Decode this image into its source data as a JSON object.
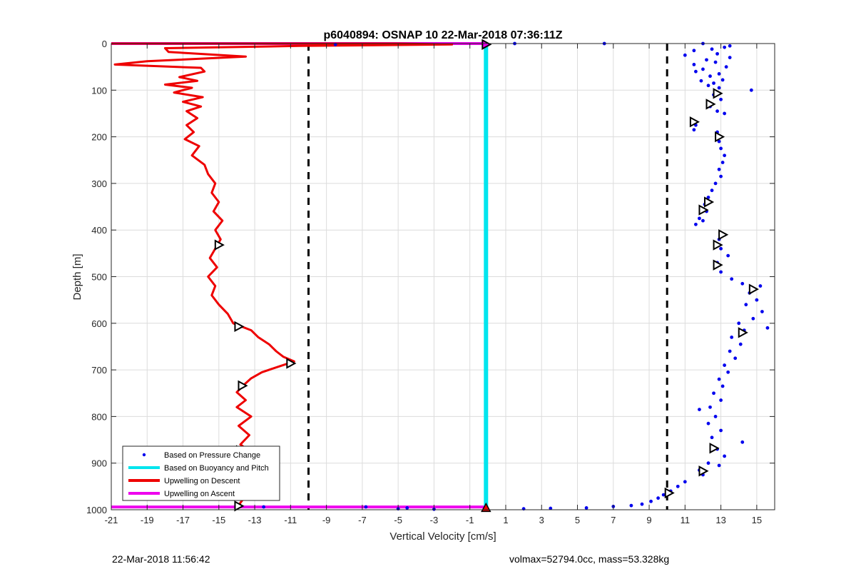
{
  "chart_data": {
    "type": "scatter",
    "title": "p6040894: OSNAP 10 22-Mar-2018 07:36:11Z",
    "xlabel": "Vertical Velocity [cm/s]",
    "ylabel": "Depth [m]",
    "xlim": [
      -21,
      16
    ],
    "ylim": [
      0,
      1000
    ],
    "y_reversed": true,
    "grid": true,
    "legend_placement": "bottom-left",
    "x_ticks": [
      -21,
      -19,
      -17,
      -15,
      -13,
      -11,
      -9,
      -7,
      -5,
      -3,
      -1,
      1,
      3,
      5,
      7,
      9,
      11,
      13,
      15
    ],
    "x_tick_labels": [
      "-21",
      "-19",
      "-17",
      "-15",
      "-13",
      "-11",
      "-9",
      "-7",
      "-5",
      "-3",
      "-1",
      "1",
      "3",
      "5",
      "7",
      "9",
      "11",
      "13",
      "15"
    ],
    "y_ticks": [
      0,
      100,
      200,
      300,
      400,
      500,
      600,
      700,
      800,
      900,
      1000
    ],
    "y_tick_labels": [
      "0",
      "100",
      "200",
      "300",
      "400",
      "500",
      "600",
      "700",
      "800",
      "900",
      "1000"
    ],
    "thresholds": [
      -10,
      10
    ],
    "series": [
      {
        "name": "Based on Pressure Change",
        "kind": "scatter",
        "color": "#0000ee",
        "points": [
          [
            12.0,
            0
          ],
          [
            13.5,
            5
          ],
          [
            6.5,
            0
          ],
          [
            1.5,
            0
          ],
          [
            -8.5,
            2
          ],
          [
            11.5,
            15
          ],
          [
            12.5,
            12
          ],
          [
            13.2,
            8
          ],
          [
            11.0,
            25
          ],
          [
            12.8,
            22
          ],
          [
            12.2,
            35
          ],
          [
            11.5,
            45
          ],
          [
            12.7,
            40
          ],
          [
            13.5,
            30
          ],
          [
            12.0,
            55
          ],
          [
            11.6,
            60
          ],
          [
            12.9,
            65
          ],
          [
            13.3,
            50
          ],
          [
            12.4,
            70
          ],
          [
            11.9,
            80
          ],
          [
            12.6,
            85
          ],
          [
            13.1,
            78
          ],
          [
            12.3,
            90
          ],
          [
            12.9,
            95
          ],
          [
            14.7,
            100
          ],
          [
            12.6,
            110
          ],
          [
            13.0,
            120
          ],
          [
            12.4,
            135
          ],
          [
            12.8,
            145
          ],
          [
            13.2,
            150
          ],
          [
            11.4,
            165
          ],
          [
            11.6,
            175
          ],
          [
            11.5,
            185
          ],
          [
            12.8,
            190
          ],
          [
            12.9,
            210
          ],
          [
            13.0,
            225
          ],
          [
            13.2,
            240
          ],
          [
            13.1,
            255
          ],
          [
            12.9,
            270
          ],
          [
            13.0,
            285
          ],
          [
            12.7,
            300
          ],
          [
            12.5,
            315
          ],
          [
            12.3,
            330
          ],
          [
            12.1,
            345
          ],
          [
            12.2,
            360
          ],
          [
            11.8,
            375
          ],
          [
            11.6,
            388
          ],
          [
            12.0,
            380
          ],
          [
            13.2,
            410
          ],
          [
            12.9,
            420
          ],
          [
            13.0,
            440
          ],
          [
            13.4,
            455
          ],
          [
            12.8,
            470
          ],
          [
            13.0,
            490
          ],
          [
            13.6,
            505
          ],
          [
            14.2,
            515
          ],
          [
            15.2,
            520
          ],
          [
            14.6,
            535
          ],
          [
            15.0,
            550
          ],
          [
            14.4,
            560
          ],
          [
            15.3,
            575
          ],
          [
            14.8,
            590
          ],
          [
            15.6,
            610
          ],
          [
            14.0,
            600
          ],
          [
            14.3,
            615
          ],
          [
            13.6,
            630
          ],
          [
            14.1,
            645
          ],
          [
            13.5,
            660
          ],
          [
            13.8,
            675
          ],
          [
            13.2,
            690
          ],
          [
            13.4,
            705
          ],
          [
            12.9,
            720
          ],
          [
            13.1,
            735
          ],
          [
            12.6,
            750
          ],
          [
            13.0,
            765
          ],
          [
            12.4,
            780
          ],
          [
            11.8,
            785
          ],
          [
            12.7,
            800
          ],
          [
            12.3,
            815
          ],
          [
            13.0,
            830
          ],
          [
            12.5,
            845
          ],
          [
            14.2,
            855
          ],
          [
            12.8,
            870
          ],
          [
            13.2,
            885
          ],
          [
            12.3,
            900
          ],
          [
            12.9,
            905
          ],
          [
            11.8,
            915
          ],
          [
            12.0,
            925
          ],
          [
            11.0,
            940
          ],
          [
            10.6,
            950
          ],
          [
            10.2,
            960
          ],
          [
            9.8,
            968
          ],
          [
            9.5,
            975
          ],
          [
            9.1,
            982
          ],
          [
            8.6,
            988
          ],
          [
            8.0,
            991
          ],
          [
            7.0,
            993
          ],
          [
            5.5,
            996
          ],
          [
            3.5,
            997
          ],
          [
            2.0,
            998
          ],
          [
            -4.5,
            996
          ],
          [
            -5.0,
            998
          ],
          [
            -3.0,
            999
          ],
          [
            -6.8,
            994
          ],
          [
            -14.0,
            993
          ],
          [
            -12.5,
            994
          ]
        ]
      },
      {
        "name": "Based on Buoyancy and Pitch",
        "kind": "line",
        "color": "#00e5ee",
        "points": [
          [
            -0.1,
            0
          ],
          [
            -0.1,
            1000
          ]
        ]
      },
      {
        "name": "Upwelling on Descent",
        "kind": "line",
        "color": "#ee0000",
        "points": [
          [
            -21.0,
            0
          ],
          [
            -5.0,
            0
          ],
          [
            -2.0,
            2
          ],
          [
            -10.5,
            5
          ],
          [
            -18.0,
            10
          ],
          [
            -17.8,
            18
          ],
          [
            -13.5,
            28
          ],
          [
            -19.0,
            38
          ],
          [
            -20.8,
            45
          ],
          [
            -16.0,
            52
          ],
          [
            -15.8,
            60
          ],
          [
            -17.2,
            72
          ],
          [
            -16.2,
            80
          ],
          [
            -18.0,
            88
          ],
          [
            -16.5,
            95
          ],
          [
            -17.5,
            105
          ],
          [
            -15.9,
            115
          ],
          [
            -17.0,
            125
          ],
          [
            -16.0,
            135
          ],
          [
            -16.8,
            145
          ],
          [
            -16.2,
            160
          ],
          [
            -16.8,
            175
          ],
          [
            -16.4,
            190
          ],
          [
            -16.9,
            205
          ],
          [
            -16.1,
            220
          ],
          [
            -16.5,
            240
          ],
          [
            -15.8,
            260
          ],
          [
            -15.6,
            280
          ],
          [
            -15.2,
            300
          ],
          [
            -15.4,
            320
          ],
          [
            -15.0,
            340
          ],
          [
            -15.3,
            360
          ],
          [
            -14.8,
            380
          ],
          [
            -15.2,
            400
          ],
          [
            -14.9,
            420
          ],
          [
            -15.2,
            440
          ],
          [
            -15.5,
            460
          ],
          [
            -15.1,
            480
          ],
          [
            -15.6,
            500
          ],
          [
            -15.2,
            520
          ],
          [
            -15.4,
            540
          ],
          [
            -15.0,
            560
          ],
          [
            -14.5,
            580
          ],
          [
            -14.2,
            600
          ],
          [
            -13.2,
            615
          ],
          [
            -12.8,
            630
          ],
          [
            -12.2,
            645
          ],
          [
            -11.8,
            660
          ],
          [
            -11.4,
            672
          ],
          [
            -10.8,
            682
          ],
          [
            -11.6,
            692
          ],
          [
            -12.6,
            705
          ],
          [
            -13.2,
            718
          ],
          [
            -13.6,
            732
          ],
          [
            -14.0,
            748
          ],
          [
            -13.5,
            765
          ],
          [
            -14.0,
            780
          ],
          [
            -13.2,
            800
          ],
          [
            -13.9,
            820
          ],
          [
            -13.3,
            840
          ],
          [
            -13.8,
            860
          ],
          [
            -13.1,
            880
          ],
          [
            -13.6,
            900
          ],
          [
            -13.0,
            920
          ],
          [
            -13.5,
            940
          ],
          [
            -13.2,
            960
          ],
          [
            -13.6,
            975
          ],
          [
            -13.8,
            985
          ],
          [
            -13.9,
            993
          ]
        ]
      },
      {
        "name": "Upwelling on Ascent",
        "kind": "line",
        "color": "#ee00ee",
        "points": [
          [
            -21.0,
            0
          ],
          [
            -0.1,
            0
          ],
          [
            -0.1,
            994
          ],
          [
            -21.0,
            994
          ]
        ]
      }
    ],
    "descent_markers": [
      [
        -15.0,
        432
      ],
      [
        -13.9,
        607
      ],
      [
        -11.0,
        686
      ],
      [
        -13.7,
        734
      ],
      [
        -13.8,
        873
      ],
      [
        -13.0,
        918
      ],
      [
        -13.9,
        992
      ]
    ],
    "ascent_markers": [
      [
        12.8,
        107
      ],
      [
        12.4,
        130
      ],
      [
        11.5,
        168
      ],
      [
        12.9,
        200
      ],
      [
        12.3,
        340
      ],
      [
        12.0,
        357
      ],
      [
        13.1,
        410
      ],
      [
        12.8,
        432
      ],
      [
        12.8,
        475
      ],
      [
        14.8,
        527
      ],
      [
        14.2,
        620
      ],
      [
        12.6,
        868
      ],
      [
        12.0,
        917
      ],
      [
        10.1,
        964
      ]
    ],
    "ascent_start_marker": [
      -0.1,
      2
    ],
    "descent_end_marker": [
      -0.1,
      996
    ]
  },
  "footer": {
    "left": "22-Mar-2018 11:56:42",
    "right": "volmax=52794.0cc, mass=53.328kg"
  }
}
